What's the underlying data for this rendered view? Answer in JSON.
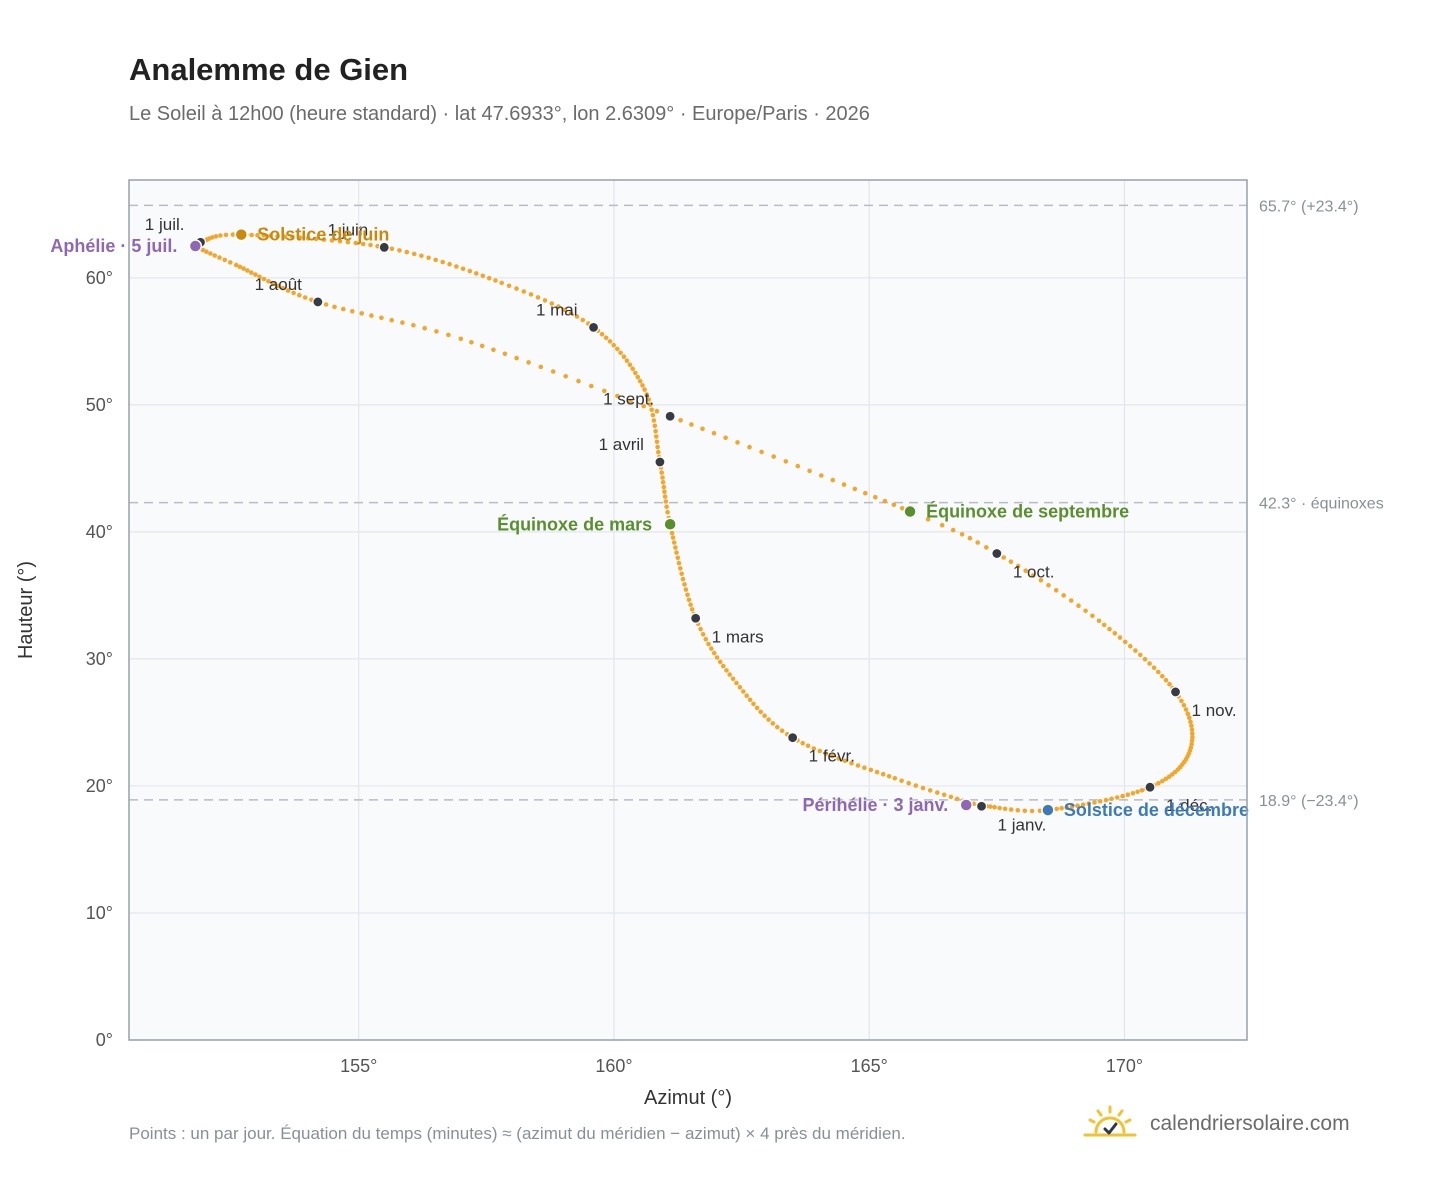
{
  "header": {
    "title": "Analemme de Gien",
    "subtitle": "Le Soleil à 12h00 (heure standard) · lat 47.6933°, lon 2.6309° · Europe/Paris · 2026"
  },
  "footer": {
    "note": "Points : un par jour. Équation du temps (minutes) ≈ (azimut du méridien − azimut) × 4 près du méridien.",
    "brand": "calendriersolaire.com",
    "brand_icon": "sun-check-icon"
  },
  "colors": {
    "curve": "#f2a72a",
    "month_dot": "#373b45",
    "solstice_june": "#c98a0c",
    "solstice_december": "#3d7ab8",
    "equinox": "#5a8f2e",
    "apsis": "#8f68b5",
    "reference_line": "#b8bdc5",
    "plot_bg": "#f8fafc",
    "grid": "#e3e7ec",
    "frame": "#96a0ae"
  },
  "chart_data": {
    "type": "scatter",
    "xlabel": "Azimut (°)",
    "ylabel": "Hauteur (°)",
    "xlim": [
      150.5,
      172.4
    ],
    "ylim": [
      0,
      67.7
    ],
    "grid": true,
    "x_ticks": [
      {
        "value": 155,
        "label": "155°"
      },
      {
        "value": 160,
        "label": "160°"
      },
      {
        "value": 165,
        "label": "165°"
      },
      {
        "value": 170,
        "label": "170°"
      }
    ],
    "y_ticks": [
      {
        "value": 0,
        "label": "0°"
      },
      {
        "value": 10,
        "label": "10°"
      },
      {
        "value": 20,
        "label": "20°"
      },
      {
        "value": 30,
        "label": "30°"
      },
      {
        "value": 40,
        "label": "40°"
      },
      {
        "value": 50,
        "label": "50°"
      },
      {
        "value": 60,
        "label": "60°"
      }
    ],
    "reference_lines": [
      {
        "y": 65.7,
        "label": "65.7° (+23.4°)"
      },
      {
        "y": 42.3,
        "label": "42.3° · équinoxes"
      },
      {
        "y": 18.9,
        "label": "18.9° (−23.4°)"
      }
    ],
    "analemma_knots": [
      {
        "date": "01-01",
        "azimuth": 167.2,
        "altitude": 18.4
      },
      {
        "date": "01-15",
        "azimuth": 165.5,
        "altitude": 20.6
      },
      {
        "date": "02-01",
        "azimuth": 163.5,
        "altitude": 23.8
      },
      {
        "date": "02-15",
        "azimuth": 162.4,
        "altitude": 28.1
      },
      {
        "date": "03-01",
        "azimuth": 161.6,
        "altitude": 33.2
      },
      {
        "date": "03-20",
        "azimuth": 161.1,
        "altitude": 40.6
      },
      {
        "date": "04-01",
        "azimuth": 160.9,
        "altitude": 45.5
      },
      {
        "date": "04-15",
        "azimuth": 160.6,
        "altitude": 51.2
      },
      {
        "date": "05-01",
        "azimuth": 159.6,
        "altitude": 56.1
      },
      {
        "date": "05-15",
        "azimuth": 157.8,
        "altitude": 59.6
      },
      {
        "date": "06-01",
        "azimuth": 155.5,
        "altitude": 62.4
      },
      {
        "date": "06-21",
        "azimuth": 152.7,
        "altitude": 63.4
      },
      {
        "date": "07-01",
        "azimuth": 151.9,
        "altitude": 62.8
      },
      {
        "date": "07-05",
        "azimuth": 151.8,
        "altitude": 62.5
      },
      {
        "date": "07-15",
        "azimuth": 152.6,
        "altitude": 61.0
      },
      {
        "date": "08-01",
        "azimuth": 154.2,
        "altitude": 58.1
      },
      {
        "date": "08-15",
        "azimuth": 157.0,
        "altitude": 55.2
      },
      {
        "date": "09-01",
        "azimuth": 161.1,
        "altitude": 49.1
      },
      {
        "date": "09-23",
        "azimuth": 165.8,
        "altitude": 41.6
      },
      {
        "date": "10-01",
        "azimuth": 167.5,
        "altitude": 38.3
      },
      {
        "date": "10-15",
        "azimuth": 169.5,
        "altitude": 33.0
      },
      {
        "date": "11-01",
        "azimuth": 171.0,
        "altitude": 27.4
      },
      {
        "date": "11-15",
        "azimuth": 171.3,
        "altitude": 23.0
      },
      {
        "date": "12-01",
        "azimuth": 170.5,
        "altitude": 19.9
      },
      {
        "date": "12-21",
        "azimuth": 168.5,
        "altitude": 18.1
      },
      {
        "date": "12-31",
        "azimuth": 167.3,
        "altitude": 18.4
      }
    ],
    "month_markers": [
      {
        "label": "1 janv.",
        "azimuth": 167.2,
        "altitude": 18.4,
        "label_pos": "below-right"
      },
      {
        "label": "1 févr.",
        "azimuth": 163.5,
        "altitude": 23.8,
        "label_pos": "below-right"
      },
      {
        "label": "1 mars",
        "azimuth": 161.6,
        "altitude": 33.2,
        "label_pos": "below-right"
      },
      {
        "label": "1 avril",
        "azimuth": 160.9,
        "altitude": 45.5,
        "label_pos": "upper-left"
      },
      {
        "label": "1 mai",
        "azimuth": 159.6,
        "altitude": 56.1,
        "label_pos": "upper-left"
      },
      {
        "label": "1 juin",
        "azimuth": 155.5,
        "altitude": 62.4,
        "label_pos": "upper-left"
      },
      {
        "label": "1 juil.",
        "azimuth": 151.9,
        "altitude": 62.8,
        "label_pos": "upper-left"
      },
      {
        "label": "1 août",
        "azimuth": 154.2,
        "altitude": 58.1,
        "label_pos": "upper-left"
      },
      {
        "label": "1 sept.",
        "azimuth": 161.1,
        "altitude": 49.1,
        "label_pos": "upper-left"
      },
      {
        "label": "1 oct.",
        "azimuth": 167.5,
        "altitude": 38.3,
        "label_pos": "below-right"
      },
      {
        "label": "1 nov.",
        "azimuth": 171.0,
        "altitude": 27.4,
        "label_pos": "below-right"
      },
      {
        "label": "1 déc.",
        "azimuth": 170.5,
        "altitude": 19.9,
        "label_pos": "below-right"
      }
    ],
    "key_events": [
      {
        "label": "Solstice de juin",
        "azimuth": 152.7,
        "altitude": 63.4,
        "color_key": "solstice_june",
        "label_pos": "right"
      },
      {
        "label": "Aphélie · 5 juil.",
        "azimuth": 151.8,
        "altitude": 62.5,
        "color_key": "apsis",
        "label_pos": "left"
      },
      {
        "label": "Équinoxe de mars",
        "azimuth": 161.1,
        "altitude": 40.6,
        "color_key": "equinox",
        "label_pos": "left"
      },
      {
        "label": "Équinoxe de septembre",
        "azimuth": 165.8,
        "altitude": 41.6,
        "color_key": "equinox",
        "label_pos": "right"
      },
      {
        "label": "Périhélie · 3 janv.",
        "azimuth": 166.9,
        "altitude": 18.5,
        "color_key": "apsis",
        "label_pos": "left"
      },
      {
        "label": "Solstice de décembre",
        "azimuth": 168.5,
        "altitude": 18.1,
        "color_key": "solstice_december",
        "label_pos": "right"
      }
    ]
  }
}
